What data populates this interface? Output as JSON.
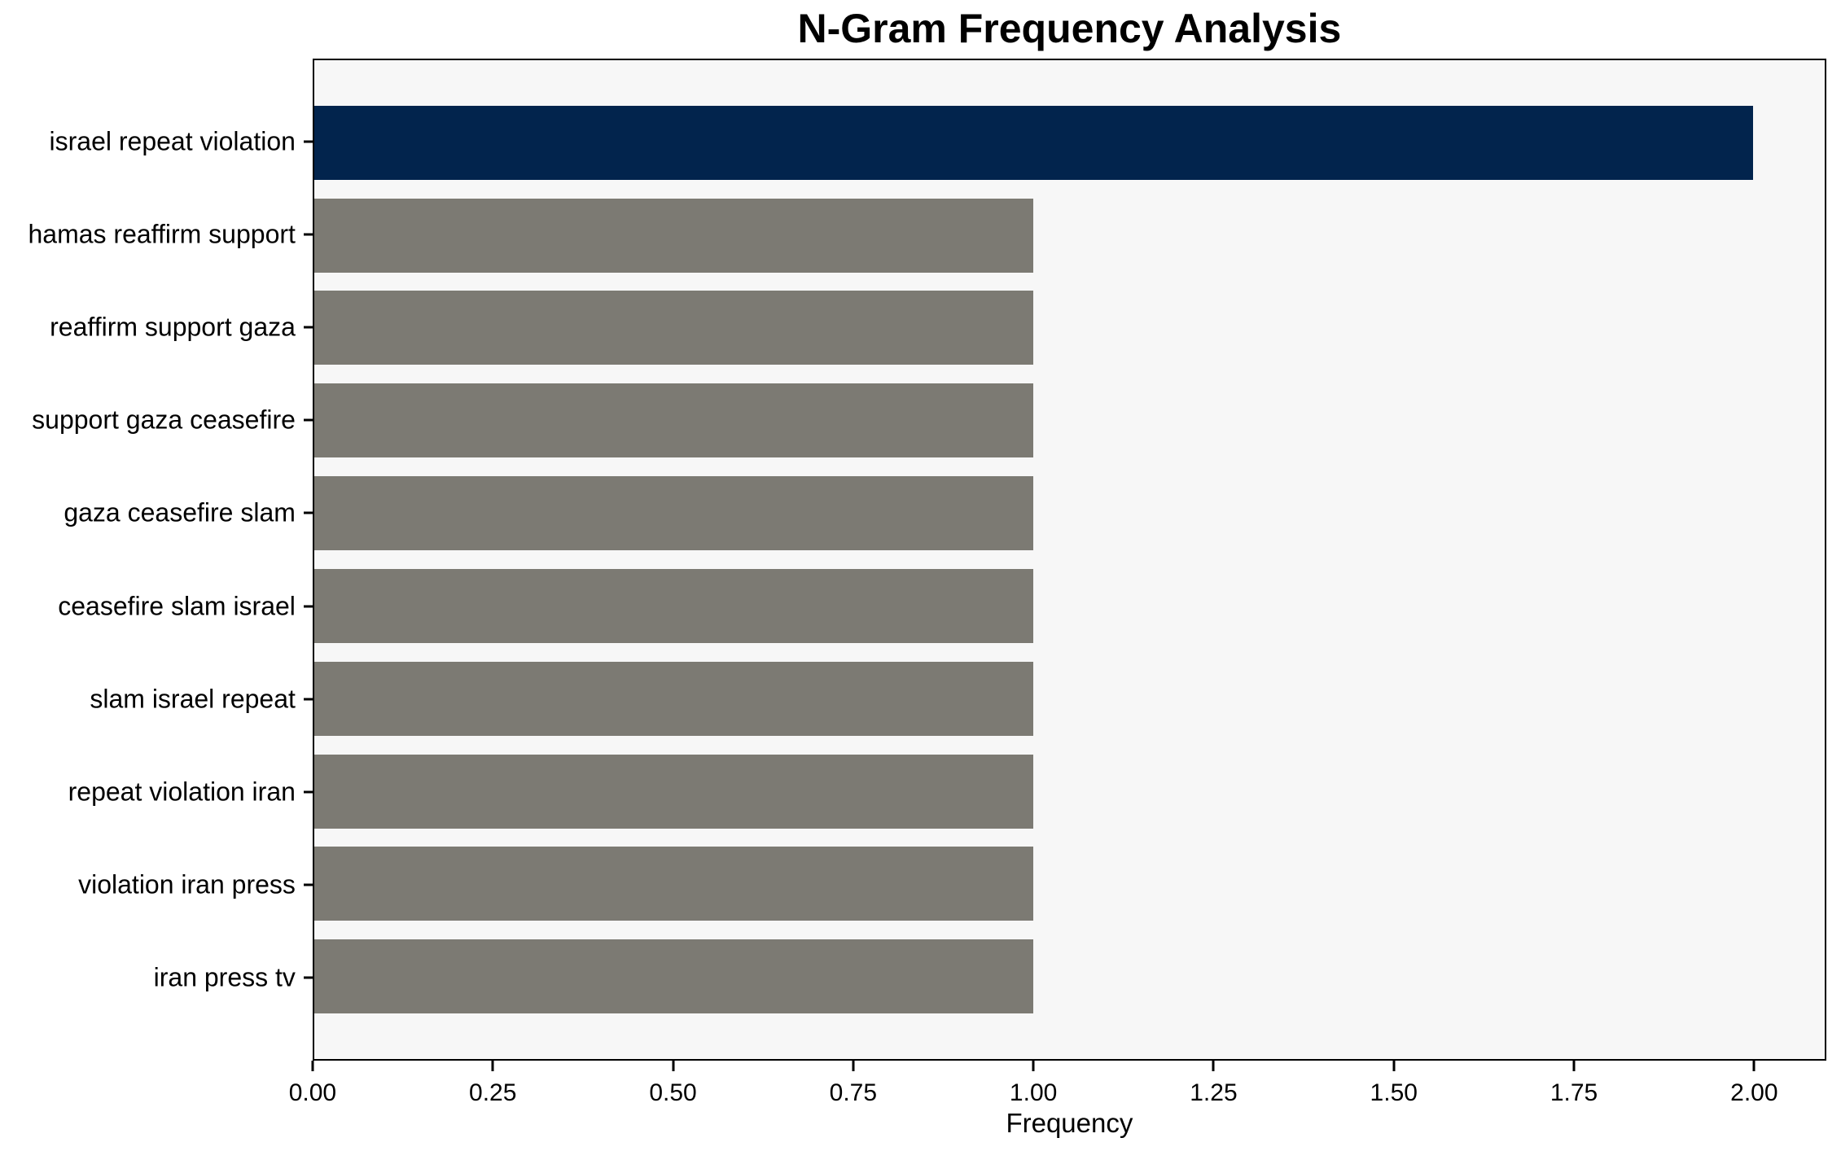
{
  "chart_data": {
    "type": "bar",
    "orientation": "horizontal",
    "title": "N-Gram Frequency Analysis",
    "xlabel": "Frequency",
    "ylabel": "",
    "categories": [
      "israel repeat violation",
      "hamas reaffirm support",
      "reaffirm support gaza",
      "support gaza ceasefire",
      "gaza ceasefire slam",
      "ceasefire slam israel",
      "slam israel repeat",
      "repeat violation iran",
      "violation iran press",
      "iran press tv"
    ],
    "values": [
      2,
      1,
      1,
      1,
      1,
      1,
      1,
      1,
      1,
      1
    ],
    "bar_colors": [
      "#02244d",
      "#7c7a73",
      "#7c7a73",
      "#7c7a73",
      "#7c7a73",
      "#7c7a73",
      "#7c7a73",
      "#7c7a73",
      "#7c7a73",
      "#7c7a73"
    ],
    "xlim": [
      0,
      2.1
    ],
    "xtick_values": [
      0,
      0.25,
      0.5,
      0.75,
      1.0,
      1.25,
      1.5,
      1.75,
      2.0
    ],
    "xtick_labels": [
      "0.00",
      "0.25",
      "0.50",
      "0.75",
      "1.00",
      "1.25",
      "1.50",
      "1.75",
      "2.00"
    ],
    "bar_height_frac": 0.8,
    "grid": false,
    "legend": "none",
    "colors": {
      "highlight": "#02244d",
      "default": "#7c7a73",
      "plot_bg": "#f7f7f7",
      "figure_bg": "#ffffff",
      "spine": "#000000",
      "text": "#000000"
    }
  }
}
